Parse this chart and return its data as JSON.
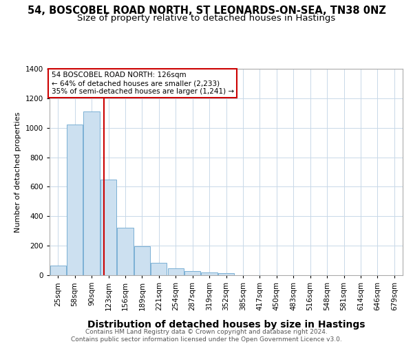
{
  "title_line1": "54, BOSCOBEL ROAD NORTH, ST LEONARDS-ON-SEA, TN38 0NZ",
  "title_line2": "Size of property relative to detached houses in Hastings",
  "xlabel": "Distribution of detached houses by size in Hastings",
  "ylabel": "Number of detached properties",
  "categories": [
    "25sqm",
    "58sqm",
    "90sqm",
    "123sqm",
    "156sqm",
    "189sqm",
    "221sqm",
    "254sqm",
    "287sqm",
    "319sqm",
    "352sqm",
    "385sqm",
    "417sqm",
    "450sqm",
    "483sqm",
    "516sqm",
    "548sqm",
    "581sqm",
    "614sqm",
    "646sqm",
    "679sqm"
  ],
  "values": [
    65,
    1020,
    1110,
    650,
    320,
    195,
    85,
    48,
    28,
    20,
    14,
    0,
    0,
    0,
    0,
    0,
    0,
    0,
    0,
    0,
    0
  ],
  "bar_color": "#cce0f0",
  "bar_edge_color": "#7ab0d4",
  "vline_color": "#cc0000",
  "vline_index": 2.75,
  "annotation_text": "54 BOSCOBEL ROAD NORTH: 126sqm\n← 64% of detached houses are smaller (2,233)\n35% of semi-detached houses are larger (1,241) →",
  "annotation_box_color": "#ffffff",
  "annotation_box_edge_color": "#cc0000",
  "ylim": [
    0,
    1400
  ],
  "yticks": [
    0,
    200,
    400,
    600,
    800,
    1000,
    1200,
    1400
  ],
  "footer": "Contains HM Land Registry data © Crown copyright and database right 2024.\nContains public sector information licensed under the Open Government Licence v3.0.",
  "title_fontsize": 10.5,
  "subtitle_fontsize": 9.5,
  "xlabel_fontsize": 9,
  "ylabel_fontsize": 8,
  "tick_fontsize": 7.5,
  "annotation_fontsize": 7.5,
  "footer_fontsize": 6.5
}
